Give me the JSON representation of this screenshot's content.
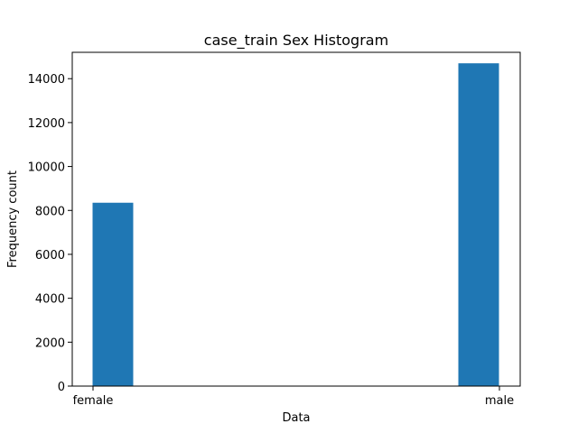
{
  "chart_data": {
    "type": "bar",
    "title": "case_train Sex Histogram",
    "xlabel": "Data",
    "ylabel": "Frequency count",
    "categories": [
      "female",
      "male"
    ],
    "values": [
      8350,
      14700
    ],
    "ylim": [
      0,
      15200
    ],
    "yticks": [
      "0",
      "2000",
      "4000",
      "6000",
      "8000",
      "10000",
      "12000",
      "14000"
    ],
    "grid": false,
    "legend": "none",
    "bar_color": "#1f77b4"
  }
}
